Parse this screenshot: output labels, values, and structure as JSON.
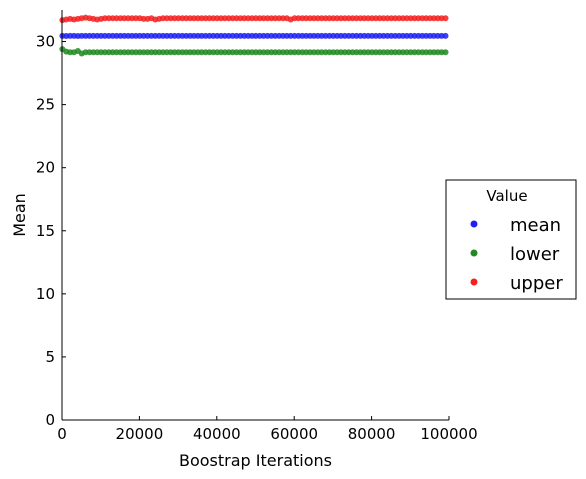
{
  "chart_data": {
    "type": "scatter",
    "title": "",
    "xlabel": "Boostrap Iterations",
    "ylabel": "Mean",
    "xlim": [
      0,
      100000
    ],
    "ylim": [
      0,
      32.5
    ],
    "xticks": [
      0,
      20000,
      40000,
      60000,
      80000,
      100000
    ],
    "yticks": [
      0,
      5,
      10,
      15,
      20,
      25,
      30
    ],
    "grid": false,
    "legend": {
      "title": "Value",
      "placement": "center-right outside"
    },
    "colors": {
      "mean": "#1f1ff5",
      "lower": "#1f8a1f",
      "upper": "#f51f1f"
    },
    "x_start": 100,
    "x_step": 1000,
    "series": [
      {
        "name": "mean",
        "values": [
          30.45,
          30.44,
          30.45,
          30.45,
          30.44,
          30.45,
          30.45,
          30.45,
          30.45,
          30.45,
          30.45,
          30.45,
          30.45,
          30.45,
          30.45,
          30.45,
          30.45,
          30.45,
          30.45,
          30.45,
          30.45,
          30.45,
          30.45,
          30.45,
          30.45,
          30.45,
          30.45,
          30.45,
          30.45,
          30.45,
          30.45,
          30.45,
          30.45,
          30.45,
          30.45,
          30.45,
          30.45,
          30.45,
          30.45,
          30.45,
          30.45,
          30.45,
          30.45,
          30.45,
          30.45,
          30.45,
          30.45,
          30.45,
          30.45,
          30.45,
          30.45,
          30.45,
          30.45,
          30.45,
          30.45,
          30.45,
          30.45,
          30.45,
          30.45,
          30.45,
          30.45,
          30.45,
          30.45,
          30.45,
          30.45,
          30.45,
          30.45,
          30.45,
          30.45,
          30.45,
          30.45,
          30.45,
          30.45,
          30.45,
          30.45,
          30.45,
          30.45,
          30.45,
          30.45,
          30.45,
          30.45,
          30.45,
          30.45,
          30.45,
          30.45,
          30.45,
          30.45,
          30.45,
          30.45,
          30.45,
          30.45,
          30.45,
          30.45,
          30.45,
          30.45,
          30.45,
          30.45,
          30.45,
          30.45,
          30.45
        ]
      },
      {
        "name": "lower",
        "values": [
          29.4,
          29.2,
          29.15,
          29.15,
          29.25,
          29.05,
          29.15,
          29.15,
          29.15,
          29.15,
          29.15,
          29.15,
          29.15,
          29.15,
          29.15,
          29.15,
          29.15,
          29.15,
          29.15,
          29.15,
          29.15,
          29.15,
          29.15,
          29.15,
          29.15,
          29.15,
          29.15,
          29.15,
          29.15,
          29.15,
          29.15,
          29.15,
          29.15,
          29.15,
          29.15,
          29.15,
          29.15,
          29.15,
          29.15,
          29.15,
          29.15,
          29.15,
          29.15,
          29.15,
          29.15,
          29.15,
          29.15,
          29.15,
          29.15,
          29.15,
          29.15,
          29.15,
          29.15,
          29.15,
          29.15,
          29.15,
          29.15,
          29.15,
          29.15,
          29.15,
          29.15,
          29.15,
          29.15,
          29.15,
          29.15,
          29.15,
          29.15,
          29.15,
          29.15,
          29.15,
          29.15,
          29.15,
          29.15,
          29.15,
          29.15,
          29.15,
          29.15,
          29.15,
          29.15,
          29.15,
          29.15,
          29.15,
          29.15,
          29.15,
          29.15,
          29.15,
          29.15,
          29.15,
          29.15,
          29.15,
          29.15,
          29.15,
          29.15,
          29.15,
          29.15,
          29.15,
          29.15,
          29.15,
          29.15,
          29.15
        ]
      },
      {
        "name": "upper",
        "values": [
          31.7,
          31.75,
          31.8,
          31.75,
          31.8,
          31.85,
          31.9,
          31.85,
          31.8,
          31.75,
          31.8,
          31.85,
          31.85,
          31.85,
          31.85,
          31.85,
          31.85,
          31.85,
          31.85,
          31.85,
          31.85,
          31.8,
          31.8,
          31.85,
          31.75,
          31.8,
          31.85,
          31.85,
          31.85,
          31.85,
          31.85,
          31.85,
          31.85,
          31.85,
          31.85,
          31.85,
          31.85,
          31.85,
          31.85,
          31.85,
          31.85,
          31.85,
          31.85,
          31.85,
          31.85,
          31.85,
          31.85,
          31.85,
          31.85,
          31.85,
          31.85,
          31.85,
          31.85,
          31.85,
          31.85,
          31.85,
          31.85,
          31.85,
          31.85,
          31.75,
          31.85,
          31.85,
          31.85,
          31.85,
          31.85,
          31.85,
          31.85,
          31.85,
          31.85,
          31.85,
          31.85,
          31.85,
          31.85,
          31.85,
          31.85,
          31.85,
          31.85,
          31.85,
          31.85,
          31.85,
          31.85,
          31.85,
          31.85,
          31.85,
          31.85,
          31.85,
          31.85,
          31.85,
          31.85,
          31.85,
          31.85,
          31.85,
          31.85,
          31.85,
          31.85,
          31.85,
          31.85,
          31.85,
          31.85,
          31.85
        ]
      }
    ]
  }
}
